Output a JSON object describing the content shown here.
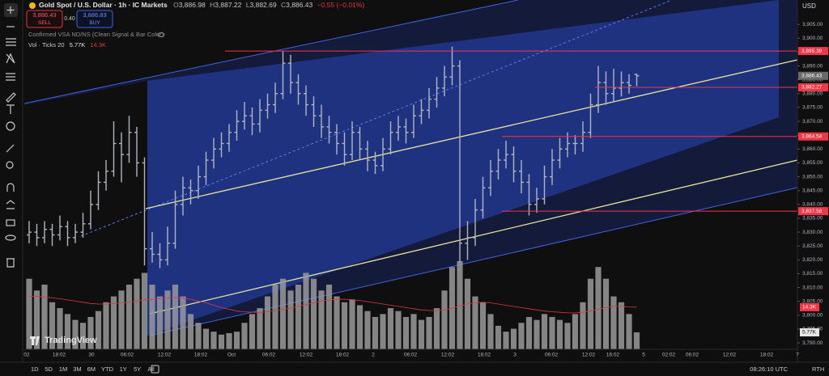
{
  "header": {
    "symbol": "Gold Spot / U.S. Dollar · 1h · IC Markets",
    "o_label": "O",
    "open": "3,886.98",
    "h_label": "H",
    "high": "3,887.22",
    "l_label": "L",
    "low": "3,882.69",
    "c_label": "C",
    "close": "3,886.43",
    "change": "−0.55 (−0.01%)",
    "sell_price": "3,886.43",
    "sell": "SELL",
    "spread": "0.40",
    "buy_price": "3,886.83",
    "buy": "BUY",
    "indicator": "Confirmed VSA ND/NS (Clean Signal & Bar Color)",
    "volume_name": "Vol · Ticks 20",
    "volume_value": "5.77K",
    "volume_ma_value": "14.3K"
  },
  "currency": "USD",
  "logo": "TradingView",
  "bottom_bar": {
    "ranges": [
      "1D",
      "5D",
      "1M",
      "3M",
      "6M",
      "YTD",
      "1Y",
      "5Y",
      "All"
    ],
    "clock": "08:26:10 UTC",
    "session": "RTH"
  },
  "chart_data": {
    "type": "ohlc",
    "color": "#b2b5be",
    "volume_color": "#9a9a9a",
    "ma_color": "#e0363f",
    "ylim": [
      3787.7,
      3913.8
    ],
    "yticks": [
      {
        "value": 3790,
        "label": "3,790.00"
      },
      {
        "value": 3795,
        "label": "3,795.00"
      },
      {
        "value": 3800,
        "label": "3,800.00"
      },
      {
        "value": 3805,
        "label": "3,805.00"
      },
      {
        "value": 3810,
        "label": "3,810.00"
      },
      {
        "value": 3815,
        "label": "3,815.00"
      },
      {
        "value": 3820,
        "label": "3,820.00"
      },
      {
        "value": 3825,
        "label": "3,825.00"
      },
      {
        "value": 3830,
        "label": "3,830.00"
      },
      {
        "value": 3835,
        "label": "3,835.00"
      },
      {
        "value": 3840,
        "label": "3,840.00"
      },
      {
        "value": 3845,
        "label": "3,845.00"
      },
      {
        "value": 3850,
        "label": "3,850.00"
      },
      {
        "value": 3855,
        "label": "3,855.00"
      },
      {
        "value": 3860,
        "label": "3,860.00"
      },
      {
        "value": 3865,
        "label": "3,865.00"
      },
      {
        "value": 3870,
        "label": "3,870.00"
      },
      {
        "value": 3875,
        "label": "3,875.00"
      },
      {
        "value": 3880,
        "label": "3,880.00"
      },
      {
        "value": 3885,
        "label": "3,885.00"
      },
      {
        "value": 3890,
        "label": "3,890.00"
      },
      {
        "value": 3895,
        "label": "3,895.00"
      },
      {
        "value": 3900,
        "label": "3,900.00"
      },
      {
        "value": 3905,
        "label": "3,905.00"
      }
    ],
    "time_labels": [
      "02",
      "18:02",
      "30",
      "06:02",
      "12:02",
      "18:02",
      "Oct",
      "06:02",
      "12:02",
      "18:02",
      "2",
      "06:02",
      "12:02",
      "18:02",
      "3",
      "06:02",
      "12:02",
      "16:02",
      "5",
      "02:02",
      "06:02",
      "12:02",
      "18:02",
      "7"
    ],
    "ohlc": [
      [
        3829,
        3834,
        3826,
        3830
      ],
      [
        3830,
        3833,
        3825,
        3828
      ],
      [
        3828,
        3834,
        3826,
        3831
      ],
      [
        3831,
        3833,
        3825,
        3829
      ],
      [
        3829,
        3836,
        3827,
        3832
      ],
      [
        3832,
        3834,
        3825,
        3828
      ],
      [
        3828,
        3833,
        3826,
        3830
      ],
      [
        3830,
        3837,
        3828,
        3833
      ],
      [
        3833,
        3845,
        3831,
        3840
      ],
      [
        3840,
        3852,
        3838,
        3848
      ],
      [
        3848,
        3856,
        3845,
        3852
      ],
      [
        3852,
        3870,
        3850,
        3862
      ],
      [
        3862,
        3866,
        3848,
        3858
      ],
      [
        3858,
        3872,
        3855,
        3866
      ],
      [
        3866,
        3868,
        3850,
        3855
      ],
      [
        3855,
        3857,
        3818,
        3824
      ],
      [
        3824,
        3830,
        3819,
        3822
      ],
      [
        3822,
        3826,
        3817,
        3820
      ],
      [
        3820,
        3832,
        3818,
        3826
      ],
      [
        3826,
        3845,
        3824,
        3840
      ],
      [
        3840,
        3850,
        3836,
        3846
      ],
      [
        3846,
        3849,
        3840,
        3845
      ],
      [
        3845,
        3854,
        3842,
        3850
      ],
      [
        3850,
        3859,
        3847,
        3856
      ],
      [
        3856,
        3864,
        3853,
        3860
      ],
      [
        3860,
        3866,
        3857,
        3862
      ],
      [
        3862,
        3869,
        3859,
        3866
      ],
      [
        3866,
        3874,
        3863,
        3870
      ],
      [
        3870,
        3877,
        3867,
        3872
      ],
      [
        3872,
        3875,
        3865,
        3869
      ],
      [
        3869,
        3878,
        3866,
        3874
      ],
      [
        3874,
        3880,
        3871,
        3876
      ],
      [
        3876,
        3884,
        3873,
        3880
      ],
      [
        3880,
        3895.4,
        3878,
        3891
      ],
      [
        3891,
        3894,
        3880,
        3884
      ],
      [
        3884,
        3887,
        3876,
        3880
      ],
      [
        3880,
        3883,
        3872,
        3876
      ],
      [
        3876,
        3879,
        3868,
        3872
      ],
      [
        3872,
        3876,
        3864,
        3868
      ],
      [
        3868,
        3872,
        3862,
        3866
      ],
      [
        3866,
        3869,
        3858,
        3862
      ],
      [
        3862,
        3866,
        3854,
        3858
      ],
      [
        3858,
        3870,
        3856,
        3866
      ],
      [
        3866,
        3868,
        3856,
        3860
      ],
      [
        3860,
        3863,
        3852,
        3856
      ],
      [
        3856,
        3859,
        3851,
        3854
      ],
      [
        3854,
        3864,
        3852,
        3860
      ],
      [
        3860,
        3870,
        3858,
        3866
      ],
      [
        3866,
        3872,
        3863,
        3868
      ],
      [
        3868,
        3871,
        3862,
        3866
      ],
      [
        3866,
        3876,
        3864,
        3872
      ],
      [
        3872,
        3878,
        3869,
        3874
      ],
      [
        3874,
        3882,
        3871,
        3878
      ],
      [
        3878,
        3886,
        3875,
        3882
      ],
      [
        3882,
        3890,
        3879,
        3886
      ],
      [
        3886,
        3897,
        3883,
        3890
      ],
      [
        3890,
        3892,
        3819,
        3826
      ],
      [
        3826,
        3834,
        3820,
        3828
      ],
      [
        3828,
        3842,
        3825,
        3838
      ],
      [
        3838,
        3850,
        3835,
        3846
      ],
      [
        3846,
        3856,
        3843,
        3852
      ],
      [
        3852,
        3860,
        3849,
        3856
      ],
      [
        3856,
        3863,
        3853,
        3858
      ],
      [
        3858,
        3861,
        3848,
        3852
      ],
      [
        3852,
        3856,
        3844,
        3848
      ],
      [
        3848,
        3851,
        3836,
        3840
      ],
      [
        3840,
        3846,
        3837,
        3842
      ],
      [
        3842,
        3854,
        3840,
        3850
      ],
      [
        3850,
        3860,
        3847,
        3856
      ],
      [
        3856,
        3864,
        3853,
        3860
      ],
      [
        3860,
        3866,
        3857,
        3862
      ],
      [
        3862,
        3865,
        3858,
        3862
      ],
      [
        3862,
        3870,
        3859,
        3866
      ],
      [
        3866,
        3880,
        3864,
        3876
      ],
      [
        3876,
        3890,
        3873,
        3884
      ],
      [
        3884,
        3888,
        3876,
        3880
      ],
      [
        3880,
        3889,
        3877,
        3882
      ],
      [
        3882,
        3888,
        3879,
        3884
      ],
      [
        3884,
        3887,
        3880,
        3883
      ],
      [
        3886.98,
        3887.22,
        3882.69,
        3886.43
      ]
    ],
    "volume_ylim": [
      0,
      118800
    ],
    "volume": [
      24000,
      20000,
      22000,
      16000,
      14000,
      12000,
      10000,
      9000,
      11000,
      13000,
      16000,
      18000,
      20000,
      22000,
      24000,
      26000,
      22000,
      18000,
      20000,
      22000,
      18000,
      12000,
      9000,
      7000,
      6000,
      5000,
      5500,
      6000,
      9000,
      12000,
      14000,
      18000,
      22000,
      24000,
      20000,
      22000,
      26000,
      24000,
      20000,
      22000,
      18000,
      16000,
      17000,
      15000,
      13000,
      11000,
      12000,
      14000,
      13000,
      11000,
      12000,
      10000,
      11000,
      14000,
      20000,
      28000,
      30000,
      24000,
      18000,
      16000,
      12000,
      8000,
      6000,
      7000,
      9000,
      11000,
      10000,
      12000,
      11000,
      10000,
      9000,
      12000,
      16000,
      24000,
      28000,
      24000,
      18000,
      16000,
      12000,
      5770
    ],
    "volume_ma": [
      18000,
      18000,
      17800,
      17500,
      17200,
      16800,
      16400,
      16000,
      15600,
      15400,
      15400,
      15600,
      15800,
      16000,
      16400,
      16800,
      17000,
      17200,
      17400,
      17600,
      17400,
      17000,
      16400,
      15800,
      15000,
      14200,
      13600,
      13000,
      12800,
      12600,
      12600,
      12800,
      13200,
      13600,
      14000,
      14600,
      15200,
      15800,
      16400,
      16800,
      17000,
      17000,
      16800,
      16600,
      16200,
      15800,
      15400,
      15000,
      14600,
      14200,
      13800,
      13400,
      13200,
      13200,
      13400,
      14000,
      14800,
      15400,
      15800,
      16000,
      15800,
      15400,
      15000,
      14600,
      14200,
      13800,
      13400,
      13000,
      12800,
      12600,
      12400,
      12400,
      12600,
      13000,
      13600,
      14200,
      14600,
      14600,
      14400,
      14300
    ],
    "price_lines": [
      {
        "price": 3895.39,
        "label": "3,895.39"
      },
      {
        "price": 3882.27,
        "label": "3,882.27"
      },
      {
        "price": 3864.54,
        "label": "3,864.54"
      },
      {
        "price": 3837.58,
        "label": "3,837.58"
      }
    ],
    "last_price": {
      "value": 3886.43,
      "label": "3,886.43"
    }
  }
}
